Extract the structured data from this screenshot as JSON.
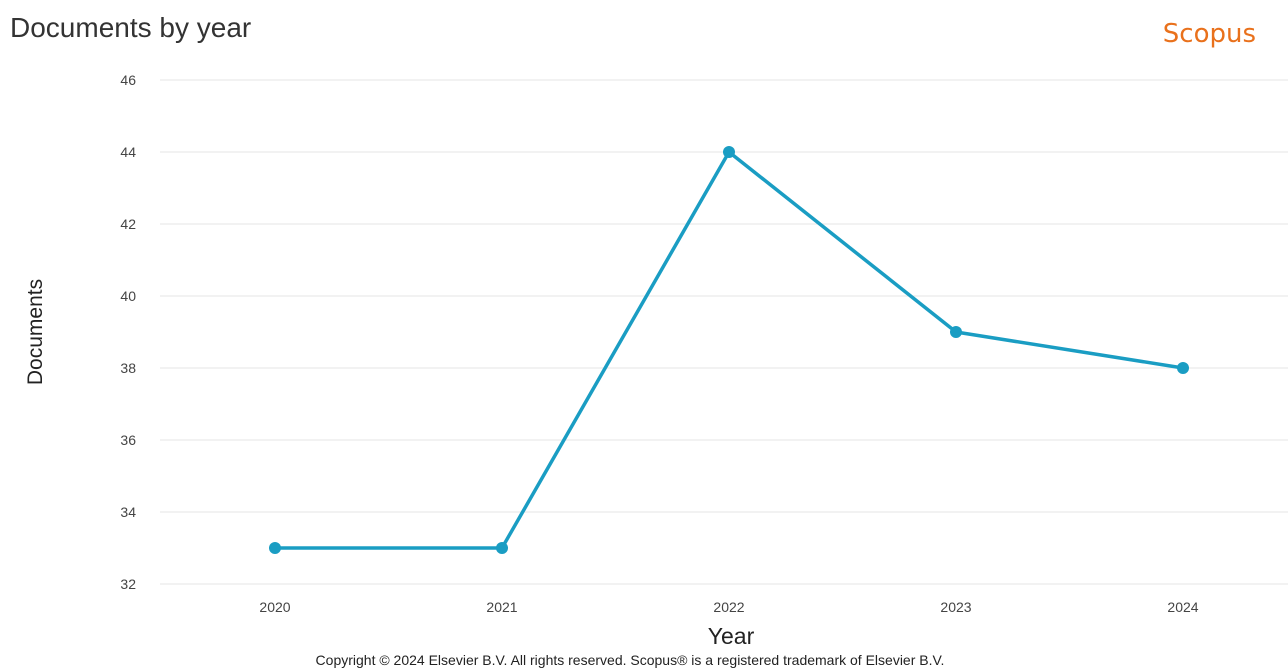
{
  "header": {
    "title": "Documents by year",
    "brand": "Scopus"
  },
  "footer": {
    "copyright": "Copyright © 2024 Elsevier B.V. All rights reserved. Scopus® is a registered trademark of Elsevier B.V."
  },
  "colors": {
    "series": "#1a9dc3",
    "brand": "#e9711c",
    "grid": "#e6e6e6"
  },
  "chart_data": {
    "type": "line",
    "title": "Documents by year",
    "xlabel": "Year",
    "ylabel": "Documents",
    "categories": [
      "2020",
      "2021",
      "2022",
      "2023",
      "2024"
    ],
    "y_ticks": [
      "32",
      "34",
      "36",
      "38",
      "40",
      "42",
      "44",
      "46"
    ],
    "ylim": [
      32,
      46
    ],
    "grid": true,
    "series": [
      {
        "values": [
          33,
          33,
          44,
          39,
          38
        ]
      }
    ]
  }
}
